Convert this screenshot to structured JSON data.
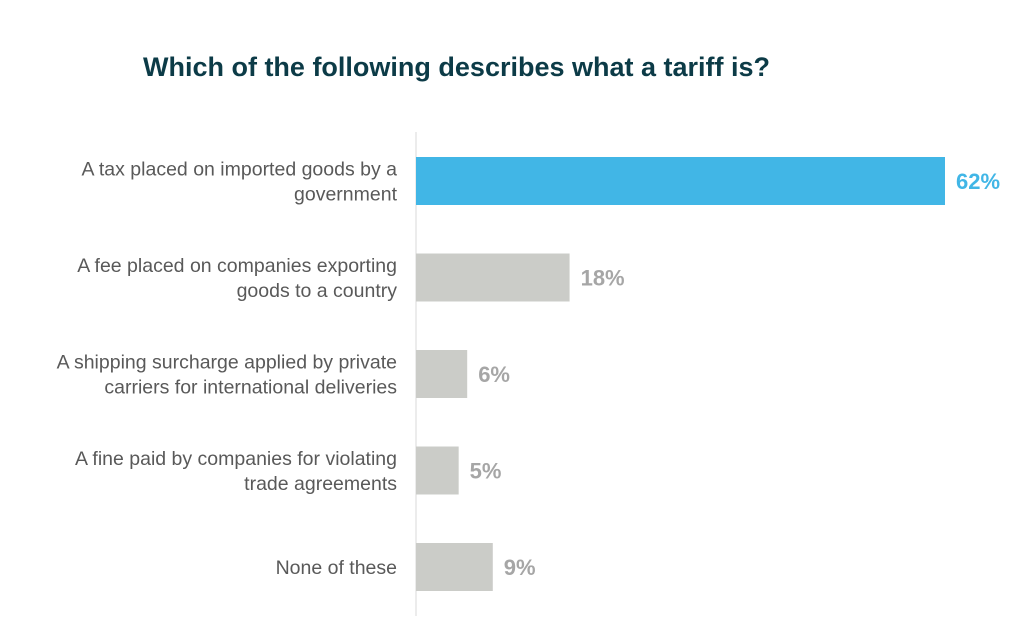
{
  "chart_data": {
    "type": "bar",
    "orientation": "horizontal",
    "title": "Which of the following describes what a tariff is?",
    "categories": [
      [
        "A tax placed on imported goods by a",
        "government"
      ],
      [
        "A fee placed on companies exporting",
        "goods to a country"
      ],
      [
        "A shipping surcharge applied by private",
        "carriers for international deliveries"
      ],
      [
        "A fine paid by companies for violating",
        "trade agreements"
      ],
      [
        "None of these"
      ]
    ],
    "values": [
      62,
      18,
      6,
      5,
      9
    ],
    "value_labels": [
      "62%",
      "18%",
      "6%",
      "5%",
      "9%"
    ],
    "unit": "%",
    "xlim": [
      0,
      62
    ],
    "grid": false,
    "legend": "none",
    "colors": {
      "highlight": "#41b6e6",
      "default": "#cbccc8",
      "highlight_label": "#41b6e6",
      "default_label": "#a6a6a6",
      "axis": "#d9d9d9"
    },
    "highlight_index": 0
  }
}
